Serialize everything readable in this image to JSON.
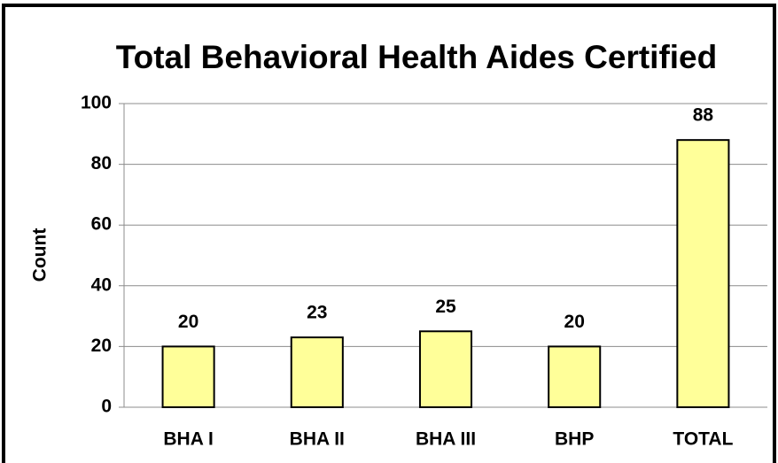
{
  "chart_data": {
    "type": "bar",
    "title": "Total Behavioral Health Aides Certified",
    "y_label": "Count",
    "categories": [
      "BHA I",
      "BHA II",
      "BHA III",
      "BHP",
      "TOTAL"
    ],
    "values": [
      20,
      23,
      25,
      20,
      88
    ],
    "color": "#ffff99",
    "ylim": [
      0,
      100
    ],
    "yticks": [
      0,
      20,
      40,
      60,
      80,
      100
    ],
    "grid": true
  }
}
